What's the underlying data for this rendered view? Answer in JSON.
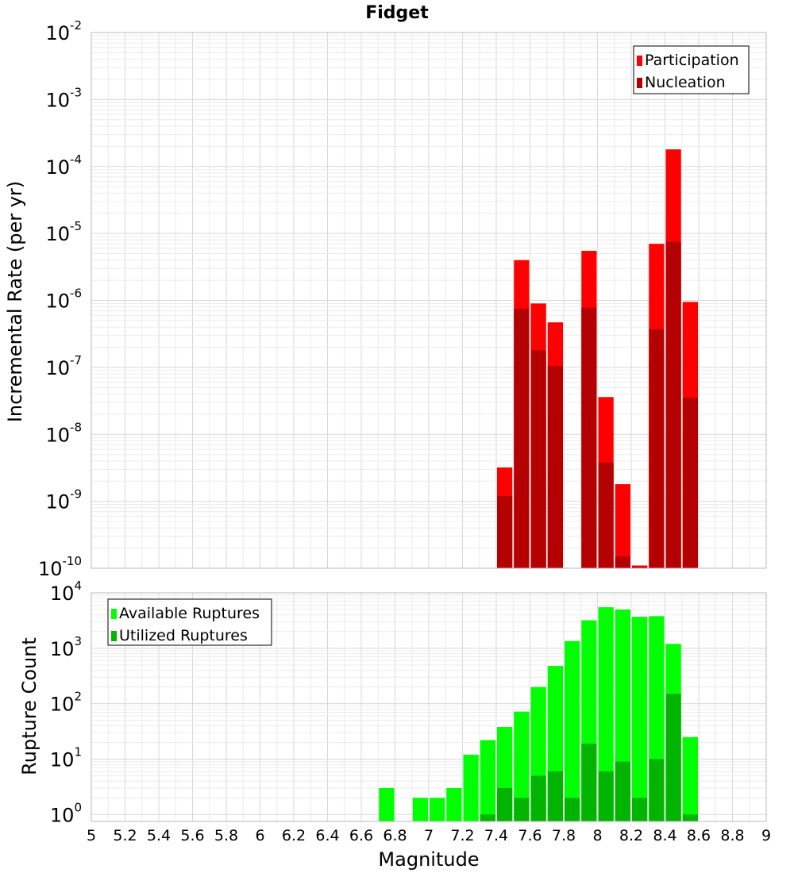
{
  "chart_data": [
    {
      "type": "bar",
      "title": "Fidget",
      "xlabel": "",
      "ylabel": "Incremental Rate (per yr)",
      "yscale": "log",
      "ylim": [
        1e-10,
        0.01
      ],
      "xlim": [
        5,
        9
      ],
      "bar_width": 0.1,
      "grid": true,
      "legend": "top-right",
      "x": [
        7.45,
        7.55,
        7.65,
        7.75,
        7.95,
        8.05,
        8.15,
        8.25,
        8.35,
        8.45,
        8.55
      ],
      "series": [
        {
          "name": "Participation",
          "color": "#ff0000",
          "values": [
            3.2e-09,
            4e-06,
            9e-07,
            4.7e-07,
            5.5e-06,
            3.6e-08,
            1.8e-09,
            1.1e-10,
            7e-06,
            0.00018,
            9.5e-07
          ]
        },
        {
          "name": "Nucleation",
          "color": "#b40000",
          "values": [
            1.2e-09,
            7.5e-07,
            1.8e-07,
            1.05e-07,
            7.8e-07,
            3.8e-09,
            1.5e-10,
            1.05e-10,
            3.7e-07,
            7.5e-06,
            3.5e-08
          ]
        }
      ]
    },
    {
      "type": "bar",
      "title": "",
      "xlabel": "Magnitude",
      "ylabel": "Rupture Count",
      "yscale": "log",
      "ylim": [
        0.75,
        10000
      ],
      "xlim": [
        5,
        9
      ],
      "bar_width": 0.1,
      "grid": true,
      "legend": "top-left",
      "x_ticks": [
        "5",
        "5.2",
        "5.4",
        "5.6",
        "5.8",
        "6",
        "6.2",
        "6.4",
        "6.6",
        "6.8",
        "7",
        "7.2",
        "7.4",
        "7.6",
        "7.8",
        "8",
        "8.2",
        "8.4",
        "8.6",
        "8.8",
        "9"
      ],
      "x": [
        6.75,
        6.95,
        7.05,
        7.15,
        7.25,
        7.35,
        7.45,
        7.55,
        7.65,
        7.75,
        7.85,
        7.95,
        8.05,
        8.15,
        8.25,
        8.35,
        8.45,
        8.55
      ],
      "series": [
        {
          "name": "Available Ruptures",
          "color": "#00ff00",
          "values": [
            3,
            2,
            2,
            3,
            12,
            22,
            38,
            72,
            200,
            480,
            1350,
            3200,
            5500,
            5000,
            3700,
            3800,
            1200,
            25
          ]
        },
        {
          "name": "Utilized Ruptures",
          "color": "#00b400",
          "values": [
            0,
            0,
            0,
            0,
            0,
            1,
            3,
            2,
            5,
            6,
            2,
            19,
            6,
            9,
            2,
            10,
            150,
            1
          ]
        }
      ]
    }
  ]
}
